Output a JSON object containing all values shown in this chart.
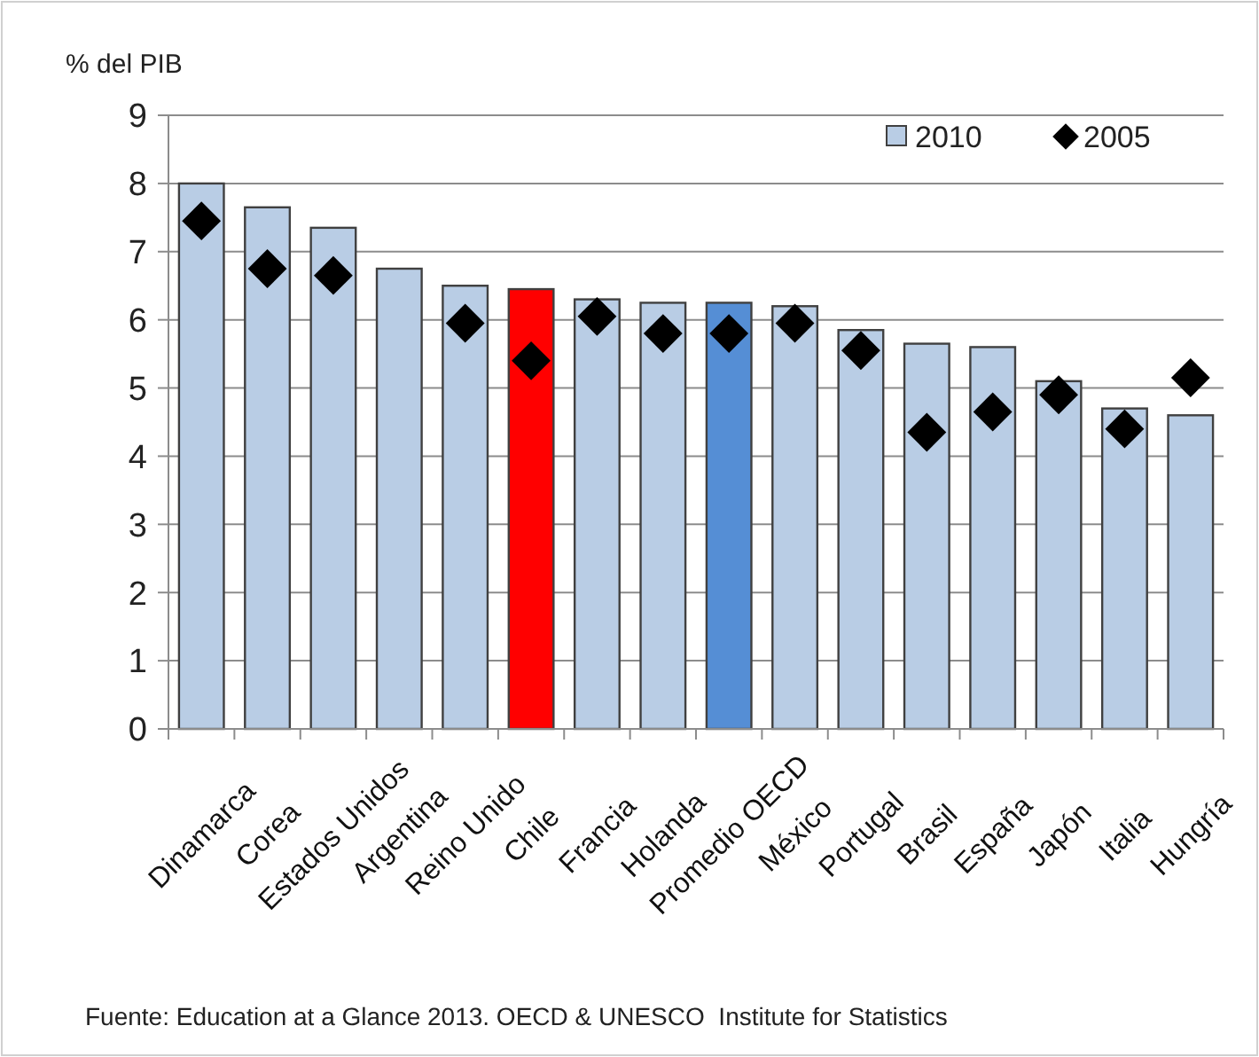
{
  "chart_data": {
    "type": "bar",
    "ylabel": "% del PIB",
    "categories": [
      "Dinamarca",
      "Corea",
      "Estados Unidos",
      "Argentina",
      "Reino Unido",
      "Chile",
      "Francia",
      "Holanda",
      "Promedio OECD",
      "México",
      "Portugal",
      "Brasil",
      "España",
      "Japón",
      "Italia",
      "Hungría"
    ],
    "series": [
      {
        "name": "2010",
        "type": "bar",
        "color": "#b9cde5",
        "colors": [
          "#b9cde5",
          "#b9cde5",
          "#b9cde5",
          "#b9cde5",
          "#b9cde5",
          "#ff0000",
          "#b9cde5",
          "#b9cde5",
          "#558ed5",
          "#b9cde5",
          "#b9cde5",
          "#b9cde5",
          "#b9cde5",
          "#b9cde5",
          "#b9cde5",
          "#b9cde5"
        ],
        "values": [
          8.0,
          7.65,
          7.35,
          6.75,
          6.5,
          6.45,
          6.3,
          6.25,
          6.25,
          6.2,
          5.85,
          5.65,
          5.6,
          5.1,
          4.7,
          4.6
        ]
      },
      {
        "name": "2005",
        "type": "scatter",
        "color": "#000000",
        "marker": "diamond",
        "x": [
          "Dinamarca",
          "Corea",
          "Estados Unidos",
          "Argentina",
          "Reino Unido",
          "Chile",
          "Francia",
          "Holanda",
          "Promedio OECD",
          "México",
          "Portugal",
          "Brasil",
          "España",
          "Japón",
          "Italia",
          "Hungría"
        ],
        "values": [
          7.45,
          6.75,
          6.65,
          null,
          5.95,
          5.4,
          6.05,
          5.8,
          5.8,
          5.95,
          5.55,
          4.35,
          4.65,
          4.9,
          4.4,
          5.15
        ]
      }
    ],
    "ylim": [
      0,
      9
    ],
    "yticks": [
      0,
      1,
      2,
      3,
      4,
      5,
      6,
      7,
      8,
      9
    ],
    "grid": "y",
    "legend": "top right",
    "annotations": [
      "Fuente: Education at a Glance 2013. OECD & UNESCO  Institute for Statistics"
    ]
  }
}
